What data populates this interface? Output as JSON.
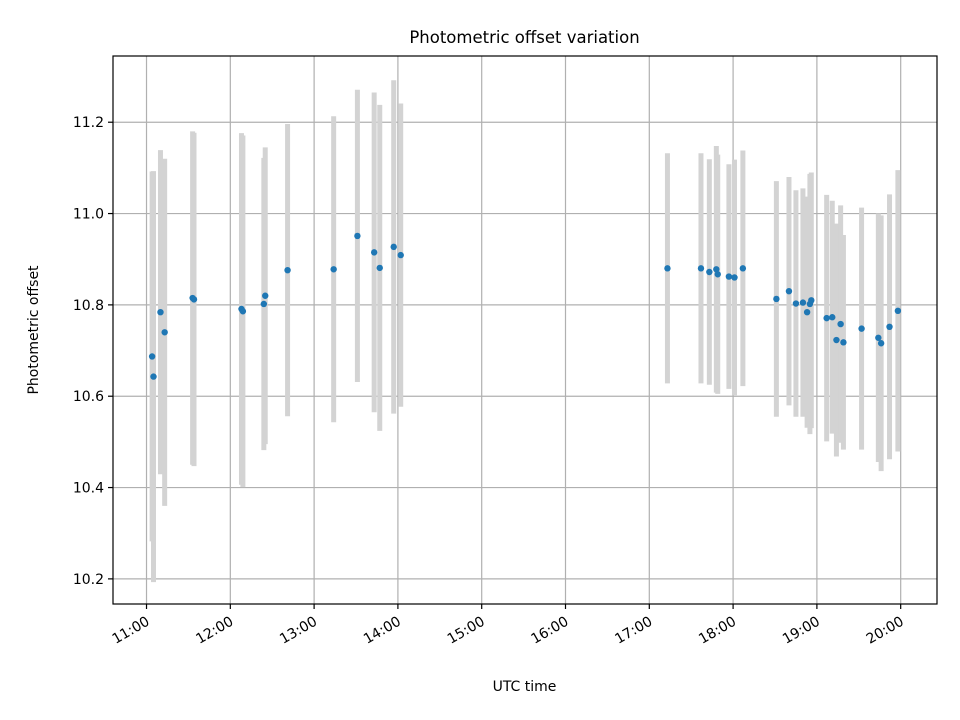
{
  "chart_data": {
    "type": "scatter",
    "title": "Photometric offset variation",
    "xlabel": "UTC time",
    "ylabel": "Photometric offset",
    "x_ticks": [
      "11:00",
      "12:00",
      "13:00",
      "14:00",
      "15:00",
      "16:00",
      "17:00",
      "18:00",
      "19:00",
      "20:00"
    ],
    "y_ticks": [
      "10.2",
      "10.4",
      "10.6",
      "10.8",
      "11.0",
      "11.2"
    ],
    "xlim": [
      "10:36",
      "20:26"
    ],
    "ylim": [
      10.145,
      11.345
    ],
    "grid": true,
    "colors": {
      "points": "#1f77b4",
      "error_bars": "#d3d3d3"
    },
    "series": [
      {
        "x": [
          "11:04",
          "11:05",
          "11:10",
          "11:13",
          "11:33",
          "11:34",
          "12:08",
          "12:09",
          "12:24",
          "12:25",
          "12:41",
          "13:14",
          "13:31",
          "13:43",
          "13:47",
          "13:57",
          "14:02",
          "17:13",
          "17:37",
          "17:43",
          "17:48",
          "17:49",
          "17:57",
          "18:01",
          "18:07",
          "18:31",
          "18:40",
          "18:45",
          "18:50",
          "18:53",
          "18:55",
          "18:56",
          "19:07",
          "19:11",
          "19:14",
          "19:17",
          "19:19",
          "19:32",
          "19:44",
          "19:46",
          "19:52",
          "19:58"
        ],
        "y": [
          10.687,
          10.643,
          10.784,
          10.74,
          10.815,
          10.812,
          10.791,
          10.786,
          10.802,
          10.82,
          10.876,
          10.878,
          10.951,
          10.915,
          10.881,
          10.927,
          10.909,
          10.88,
          10.88,
          10.872,
          10.878,
          10.867,
          10.862,
          10.86,
          10.88,
          10.813,
          10.83,
          10.803,
          10.805,
          10.784,
          10.802,
          10.81,
          10.771,
          10.773,
          10.723,
          10.758,
          10.718,
          10.748,
          10.728,
          10.716,
          10.752,
          10.787
        ],
        "err": [
          0.405,
          0.45,
          0.355,
          0.38,
          0.365,
          0.365,
          0.385,
          0.385,
          0.32,
          0.325,
          0.32,
          0.335,
          0.32,
          0.35,
          0.357,
          0.365,
          0.332,
          0.252,
          0.252,
          0.247,
          0.27,
          0.262,
          0.246,
          0.258,
          0.258,
          0.258,
          0.25,
          0.248,
          0.25,
          0.253,
          0.285,
          0.28,
          0.27,
          0.255,
          0.255,
          0.26,
          0.235,
          0.265,
          0.272,
          0.28,
          0.29,
          0.308
        ]
      }
    ]
  }
}
